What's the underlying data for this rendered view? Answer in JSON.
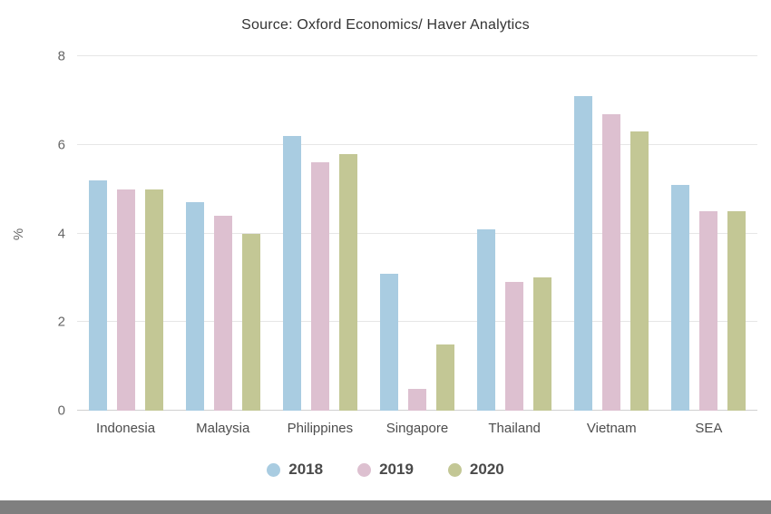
{
  "chart_data": {
    "type": "bar",
    "title": "Source: Oxford Economics/ Haver Analytics",
    "xlabel": "",
    "ylabel": "%",
    "ylim": [
      0,
      8
    ],
    "yticks": [
      0,
      2,
      4,
      6,
      8
    ],
    "grid": true,
    "legend_position": "bottom",
    "categories": [
      "Indonesia",
      "Malaysia",
      "Philippines",
      "Singapore",
      "Thailand",
      "Vietnam",
      "SEA"
    ],
    "series": [
      {
        "name": "2018",
        "color": "#a9cce1",
        "values": [
          5.2,
          4.7,
          6.2,
          3.1,
          4.1,
          7.1,
          5.1
        ]
      },
      {
        "name": "2019",
        "color": "#ddc0d0",
        "values": [
          5.0,
          4.4,
          5.6,
          0.5,
          2.9,
          6.7,
          4.5
        ]
      },
      {
        "name": "2020",
        "color": "#c3c795",
        "values": [
          5.0,
          4.0,
          5.8,
          1.5,
          3.0,
          6.3,
          4.5
        ]
      }
    ]
  },
  "page": {
    "bottom_strip_color": "#7f7f7f",
    "gridline_color": "#e6e6e6",
    "baseline_color": "#d0d0d0"
  }
}
